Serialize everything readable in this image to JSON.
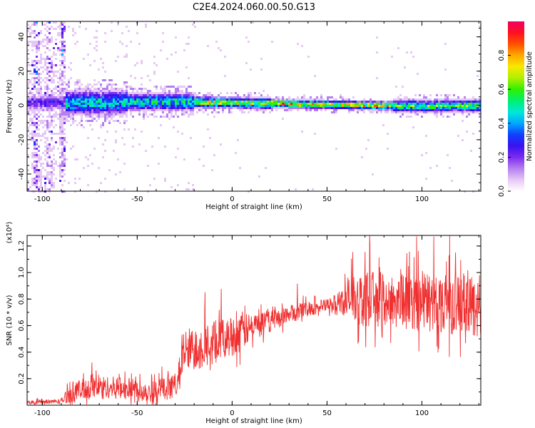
{
  "title": "C2E4.2024.060.00.50.G13",
  "chart_data": [
    {
      "type": "heatmap",
      "name": "spectrogram",
      "xlabel": "Height of straight line (km)",
      "ylabel": "Frequency (Hz)",
      "xlim": [
        -108,
        131
      ],
      "ylim": [
        -50,
        49
      ],
      "xticks": [
        -100,
        -50,
        0,
        50,
        100
      ],
      "yticks": [
        -40,
        -20,
        0,
        20,
        40
      ],
      "colorbar": {
        "label": "Normalized spectral amplitude",
        "range": [
          0.0,
          1.0
        ],
        "ticks": [
          "0.0",
          "0.2",
          "0.4",
          "0.6",
          "0.8"
        ],
        "colors": [
          "#ffffff",
          "#e6c8f5",
          "#b67ff0",
          "#7b2cf0",
          "#3a12f0",
          "#1040ff",
          "#00a8ff",
          "#00e8d8",
          "#00f070",
          "#30f000",
          "#b0f000",
          "#f8e800",
          "#ffa800",
          "#ff5000",
          "#ff1020",
          "#f00060"
        ]
      },
      "ridge": {
        "description_points_km_hz": [
          [
            -90,
            1.5
          ],
          [
            -70,
            1.5
          ],
          [
            -50,
            2
          ],
          [
            -25,
            2
          ],
          [
            0,
            1.5
          ],
          [
            50,
            0.5
          ],
          [
            100,
            -0.5
          ],
          [
            131,
            0
          ]
        ]
      }
    },
    {
      "type": "line",
      "name": "snr",
      "xlabel": "Height of straight line (km)",
      "ylabel": "SNR (10 * v/v)",
      "yscale_label": "(x10⁴)",
      "xlim": [
        -108,
        131
      ],
      "ylim": [
        0,
        1.28
      ],
      "xticks": [
        -100,
        -50,
        0,
        50,
        100
      ],
      "yticks": [
        "0.2",
        "0.4",
        "0.6",
        "0.8",
        "1.0",
        "1.2"
      ],
      "ytick_values": [
        0.2,
        0.4,
        0.6,
        0.8,
        1.0,
        1.2
      ],
      "color": "#f03030",
      "envelope_km_snr": [
        [
          -108,
          0.02
        ],
        [
          -90,
          0.03
        ],
        [
          -85,
          0.1
        ],
        [
          -70,
          0.14
        ],
        [
          -60,
          0.13
        ],
        [
          -40,
          0.1
        ],
        [
          -30,
          0.15
        ],
        [
          -25,
          0.4
        ],
        [
          -15,
          0.45
        ],
        [
          0,
          0.52
        ],
        [
          10,
          0.58
        ],
        [
          25,
          0.66
        ],
        [
          40,
          0.73
        ],
        [
          55,
          0.76
        ],
        [
          60,
          0.8
        ],
        [
          75,
          0.8
        ],
        [
          100,
          0.78
        ],
        [
          131,
          0.75
        ]
      ],
      "noise_amplitude_km": [
        [
          -108,
          0.012
        ],
        [
          -90,
          0.02
        ],
        [
          -85,
          0.08
        ],
        [
          -30,
          0.09
        ],
        [
          -25,
          0.18
        ],
        [
          0,
          0.15
        ],
        [
          20,
          0.08
        ],
        [
          50,
          0.05
        ],
        [
          58,
          0.1
        ],
        [
          62,
          0.2
        ],
        [
          131,
          0.24
        ]
      ]
    }
  ]
}
